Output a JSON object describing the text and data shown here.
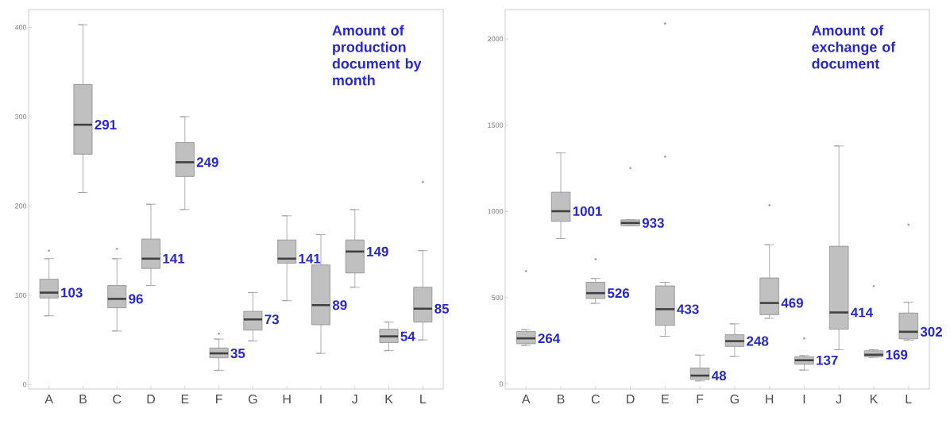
{
  "chart_data": [
    {
      "type": "box",
      "title": "Amount of production document by month",
      "categories": [
        "A",
        "B",
        "C",
        "D",
        "E",
        "F",
        "G",
        "H",
        "I",
        "J",
        "K",
        "L"
      ],
      "color": "#c0c0c0",
      "ylim": [
        -5,
        420
      ],
      "annotations": [
        {
          "text": "103",
          "x": "A",
          "y": 103
        },
        {
          "text": "291",
          "x": "B",
          "y": 291
        },
        {
          "text": "96",
          "x": "C",
          "y": 96
        },
        {
          "text": "141",
          "x": "D",
          "y": 141
        },
        {
          "text": "249",
          "x": "E",
          "y": 249
        },
        {
          "text": "35",
          "x": "F",
          "y": 35
        },
        {
          "text": "73",
          "x": "G",
          "y": 73
        },
        {
          "text": "141",
          "x": "H",
          "y": 141
        },
        {
          "text": "89",
          "x": "I",
          "y": 89
        },
        {
          "text": "149",
          "x": "J",
          "y": 149
        },
        {
          "text": "54",
          "x": "K",
          "y": 54
        },
        {
          "text": "85",
          "x": "L",
          "y": 85
        }
      ],
      "yticks": [
        0,
        100,
        200,
        300,
        400
      ],
      "boxes": [
        {
          "low": 77,
          "q1": 97,
          "median": 103,
          "q3": 118,
          "high": 141,
          "outliers": [
            150
          ]
        },
        {
          "low": 215,
          "q1": 258,
          "median": 291,
          "q3": 336,
          "high": 403
        },
        {
          "low": 60,
          "q1": 86,
          "median": 96,
          "q3": 111,
          "high": 141,
          "outliers": [
            152
          ]
        },
        {
          "low": 111,
          "q1": 130,
          "median": 141,
          "q3": 163,
          "high": 202
        },
        {
          "low": 196,
          "q1": 233,
          "median": 249,
          "q3": 271,
          "high": 300
        },
        {
          "low": 16,
          "q1": 30,
          "median": 35,
          "q3": 41,
          "high": 51,
          "outliers": [
            57
          ]
        },
        {
          "low": 49,
          "q1": 61,
          "median": 73,
          "q3": 82,
          "high": 103
        },
        {
          "low": 94,
          "q1": 136,
          "median": 141,
          "q3": 162,
          "high": 189
        },
        {
          "low": 35,
          "q1": 67,
          "median": 89,
          "q3": 134,
          "high": 168
        },
        {
          "low": 109,
          "q1": 125,
          "median": 149,
          "q3": 162,
          "high": 196
        },
        {
          "low": 38,
          "q1": 47,
          "median": 54,
          "q3": 62,
          "high": 70
        },
        {
          "low": 50,
          "q1": 70,
          "median": 85,
          "q3": 109,
          "high": 150,
          "outliers": [
            227
          ]
        }
      ]
    },
    {
      "type": "box",
      "title": "Amount of exchange of document",
      "categories": [
        "A",
        "B",
        "C",
        "D",
        "E",
        "F",
        "G",
        "H",
        "I",
        "J",
        "K",
        "L"
      ],
      "color": "#c0c0c0",
      "ylim": [
        -30,
        2170
      ],
      "annotations": [
        {
          "text": "264",
          "x": "A",
          "y": 264
        },
        {
          "text": "1001",
          "x": "B",
          "y": 1001
        },
        {
          "text": "526",
          "x": "C",
          "y": 526
        },
        {
          "text": "933",
          "x": "D",
          "y": 933
        },
        {
          "text": "433",
          "x": "E",
          "y": 433
        },
        {
          "text": "48",
          "x": "F",
          "y": 48
        },
        {
          "text": "248",
          "x": "G",
          "y": 248
        },
        {
          "text": "469",
          "x": "H",
          "y": 469
        },
        {
          "text": "137",
          "x": "I",
          "y": 137
        },
        {
          "text": "414",
          "x": "J",
          "y": 414
        },
        {
          "text": "169",
          "x": "K",
          "y": 169
        },
        {
          "text": "302",
          "x": "L",
          "y": 302
        }
      ],
      "yticks": [
        0,
        500,
        1000,
        1500,
        2000
      ],
      "boxes": [
        {
          "low": 223,
          "q1": 233,
          "median": 264,
          "q3": 304,
          "high": 315,
          "outliers": [
            654
          ]
        },
        {
          "low": 842,
          "q1": 942,
          "median": 1001,
          "q3": 1111,
          "high": 1339
        },
        {
          "low": 467,
          "q1": 495,
          "median": 526,
          "q3": 589,
          "high": 611,
          "outliers": [
            723
          ]
        },
        {
          "low": 917,
          "q1": 917,
          "median": 933,
          "q3": 951,
          "high": 951,
          "outliers": [
            1251
          ]
        },
        {
          "low": 276,
          "q1": 339,
          "median": 433,
          "q3": 568,
          "high": 589,
          "outliers": [
            1317,
            2089
          ]
        },
        {
          "low": 17,
          "q1": 26,
          "median": 48,
          "q3": 92,
          "high": 167
        },
        {
          "low": 160,
          "q1": 217,
          "median": 248,
          "q3": 285,
          "high": 348
        },
        {
          "low": 380,
          "q1": 401,
          "median": 469,
          "q3": 614,
          "high": 807,
          "outliers": [
            1036
          ]
        },
        {
          "low": 80,
          "q1": 114,
          "median": 137,
          "q3": 157,
          "high": 164,
          "outliers": [
            264
          ]
        },
        {
          "low": 198,
          "q1": 317,
          "median": 414,
          "q3": 798,
          "high": 1379
        },
        {
          "low": 154,
          "q1": 157,
          "median": 169,
          "q3": 192,
          "high": 198,
          "outliers": [
            567
          ]
        },
        {
          "low": 254,
          "q1": 261,
          "median": 302,
          "q3": 411,
          "high": 473,
          "outliers": [
            923
          ]
        }
      ]
    }
  ]
}
